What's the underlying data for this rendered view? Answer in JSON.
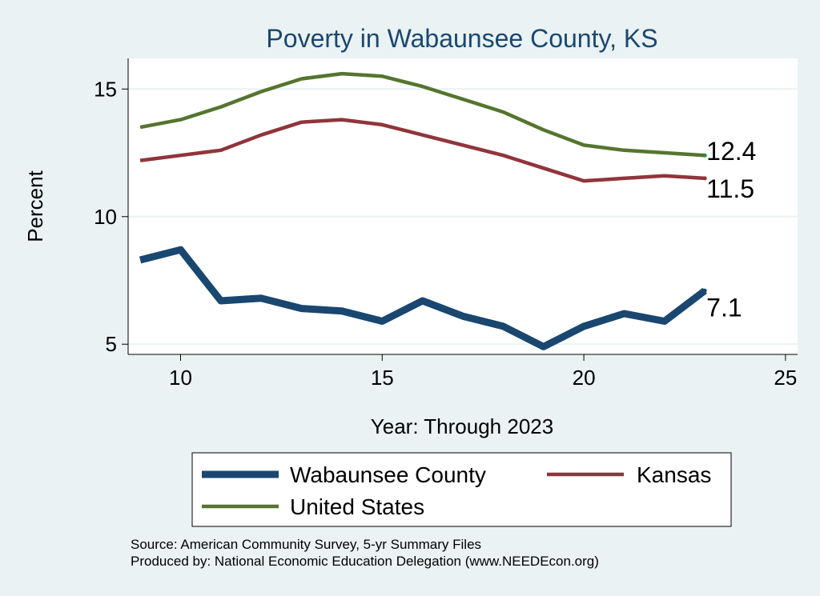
{
  "chart_data": {
    "type": "line",
    "title": "Poverty in Wabaunsee County, KS",
    "xlabel": "Year: Through 2023",
    "ylabel": "Percent",
    "xlim": [
      8.7,
      25.3
    ],
    "ylim": [
      4.6,
      16.2
    ],
    "xticks": [
      10,
      15,
      20,
      25
    ],
    "yticks": [
      5,
      10,
      15
    ],
    "grid": true,
    "legend_position": "bottom",
    "series": [
      {
        "name": "Wabaunsee County",
        "color": "#1a476f",
        "x": [
          9,
          10,
          11,
          12,
          13,
          14,
          15,
          16,
          17,
          18,
          19,
          20,
          21,
          22,
          23
        ],
        "y": [
          8.3,
          8.7,
          6.7,
          6.8,
          6.4,
          6.3,
          5.9,
          6.7,
          6.1,
          5.7,
          4.9,
          5.7,
          6.2,
          5.9,
          7.1
        ],
        "end_label": "7.1"
      },
      {
        "name": "Kansas",
        "color": "#90353b",
        "x": [
          9,
          10,
          11,
          12,
          13,
          14,
          15,
          16,
          17,
          18,
          19,
          20,
          21,
          22,
          23
        ],
        "y": [
          12.2,
          12.4,
          12.6,
          13.2,
          13.7,
          13.8,
          13.6,
          13.2,
          12.8,
          12.4,
          11.9,
          11.4,
          11.5,
          11.6,
          11.5
        ],
        "end_label": "11.5"
      },
      {
        "name": "United States",
        "color": "#55752f",
        "x": [
          9,
          10,
          11,
          12,
          13,
          14,
          15,
          16,
          17,
          18,
          19,
          20,
          21,
          22,
          23
        ],
        "y": [
          13.5,
          13.8,
          14.3,
          14.9,
          15.4,
          15.6,
          15.5,
          15.1,
          14.6,
          14.1,
          13.4,
          12.8,
          12.6,
          12.5,
          12.4
        ],
        "end_label": "12.4"
      }
    ]
  },
  "footer": {
    "source": "Source: American Community Survey, 5-yr Summary Files",
    "produced_by": "Produced by: National Economic Education Delegation (www.NEEDEcon.org)"
  }
}
